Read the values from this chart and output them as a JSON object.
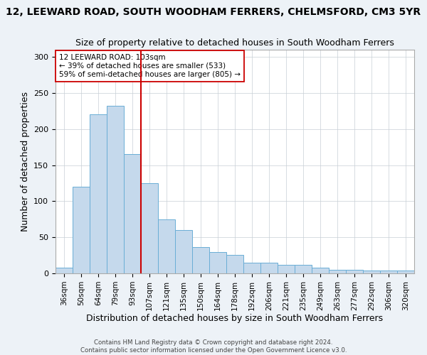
{
  "title": "12, LEEWARD ROAD, SOUTH WOODHAM FERRERS, CHELMSFORD, CM3 5YR",
  "subtitle": "Size of property relative to detached houses in South Woodham Ferrers",
  "xlabel": "Distribution of detached houses by size in South Woodham Ferrers",
  "ylabel": "Number of detached properties",
  "categories": [
    "36sqm",
    "50sqm",
    "64sqm",
    "79sqm",
    "93sqm",
    "107sqm",
    "121sqm",
    "135sqm",
    "150sqm",
    "164sqm",
    "178sqm",
    "192sqm",
    "206sqm",
    "221sqm",
    "235sqm",
    "249sqm",
    "263sqm",
    "277sqm",
    "292sqm",
    "306sqm",
    "320sqm"
  ],
  "values": [
    8,
    120,
    220,
    232,
    165,
    125,
    75,
    60,
    36,
    30,
    26,
    15,
    15,
    12,
    12,
    8,
    5,
    5,
    4,
    4,
    4
  ],
  "bar_color": "#c5d9ec",
  "bar_edge_color": "#6aaed6",
  "vline_index": 4.5,
  "vline_color": "#cc0000",
  "annotation_text": "12 LEEWARD ROAD: 103sqm\n← 39% of detached houses are smaller (533)\n59% of semi-detached houses are larger (805) →",
  "annotation_box_facecolor": "#ffffff",
  "annotation_box_edgecolor": "#cc0000",
  "ylim": [
    0,
    310
  ],
  "yticks": [
    0,
    50,
    100,
    150,
    200,
    250,
    300
  ],
  "footer": "Contains HM Land Registry data © Crown copyright and database right 2024.\nContains public sector information licensed under the Open Government Licence v3.0.",
  "bg_color": "#edf2f7",
  "plot_bg_color": "#ffffff"
}
